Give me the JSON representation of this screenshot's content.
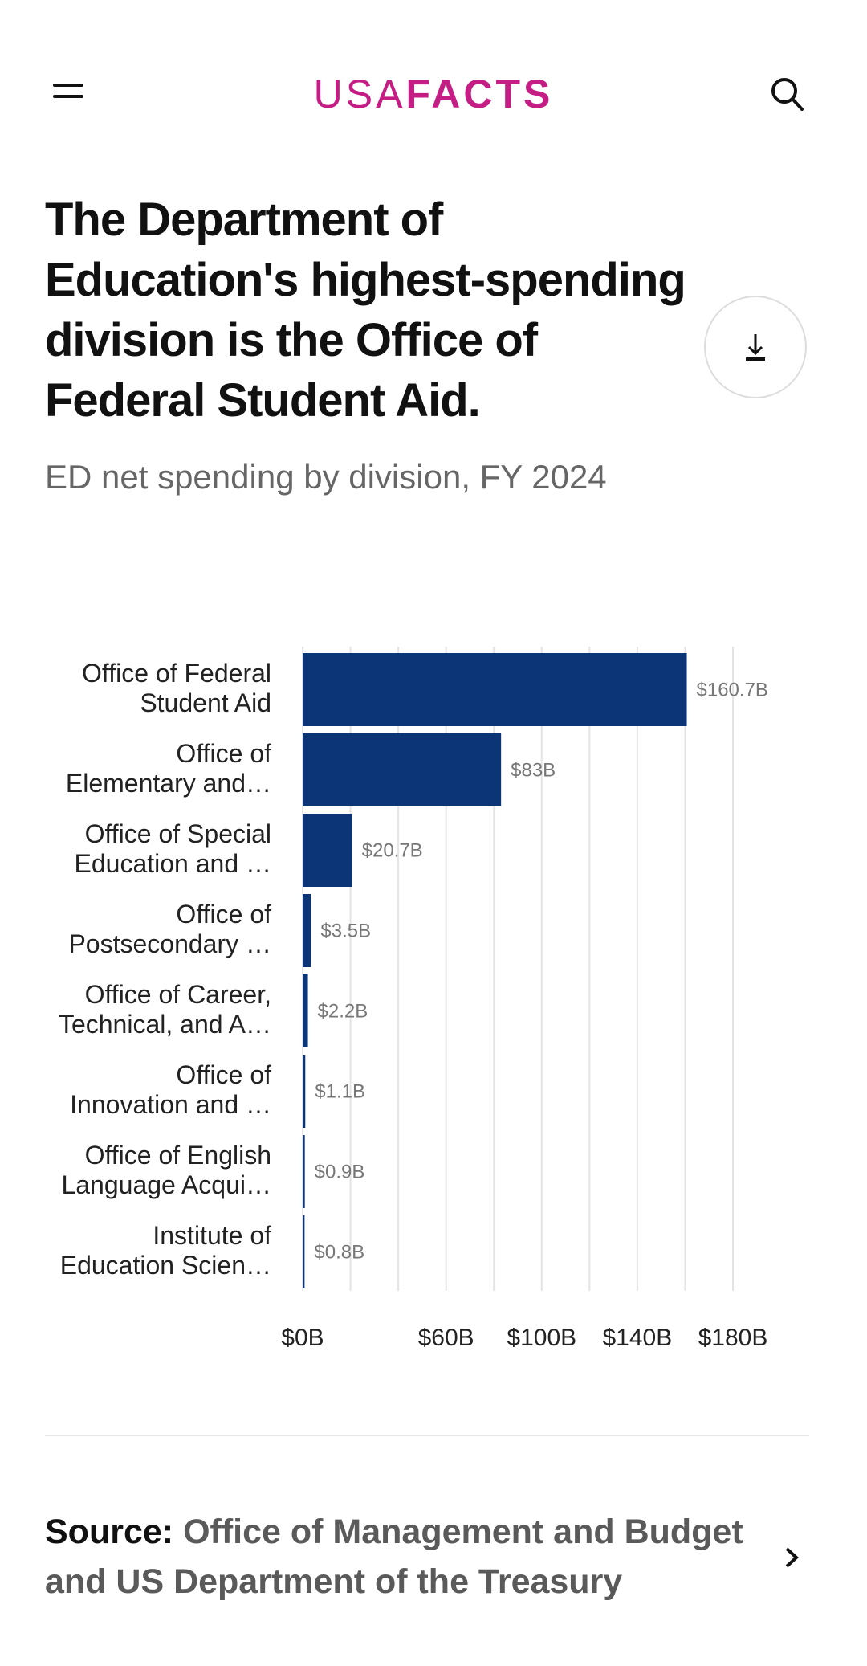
{
  "header": {
    "logo_part1": "USA",
    "logo_part2": "FACTS",
    "menu_icon": "hamburger-icon",
    "search_icon": "search-icon",
    "brand_color": "#c41d84"
  },
  "title": "The Department of Education's highest-spending division is the Office of Federal Student Aid.",
  "subtitle": "ED net spending by division, FY 2024",
  "download_icon": "download-icon",
  "chart_data": {
    "type": "bar",
    "orientation": "horizontal",
    "categories": [
      [
        "Office of Federal",
        "Student Aid"
      ],
      [
        "Office of",
        "Elementary and…"
      ],
      [
        "Office of Special",
        "Education and …"
      ],
      [
        "Office of",
        "Postsecondary …"
      ],
      [
        "Office of Career,",
        "Technical, and A…"
      ],
      [
        "Office of",
        "Innovation and …"
      ],
      [
        "Office of English",
        "Language Acqui…"
      ],
      [
        "Institute of",
        "Education Scien…"
      ]
    ],
    "values": [
      160.7,
      83,
      20.7,
      3.5,
      2.2,
      1.1,
      0.9,
      0.8
    ],
    "value_labels": [
      "$160.7B",
      "$83B",
      "$20.7B",
      "$3.5B",
      "$2.2B",
      "$1.1B",
      "$0.9B",
      "$0.8B"
    ],
    "xlim": [
      0,
      180
    ],
    "gridlines": [
      0,
      20,
      40,
      60,
      80,
      100,
      120,
      140,
      160,
      180
    ],
    "ticks": [
      {
        "value": 0,
        "label": "$0B"
      },
      {
        "value": 60,
        "label": "$60B"
      },
      {
        "value": 100,
        "label": "$100B"
      },
      {
        "value": 140,
        "label": "$140B"
      },
      {
        "value": 180,
        "label": "$180B"
      }
    ],
    "bar_color": "#0b3576",
    "grid": true
  },
  "source": {
    "label": "Source:",
    "text": "Office of Management and Budget and US Department of the Treasury"
  }
}
